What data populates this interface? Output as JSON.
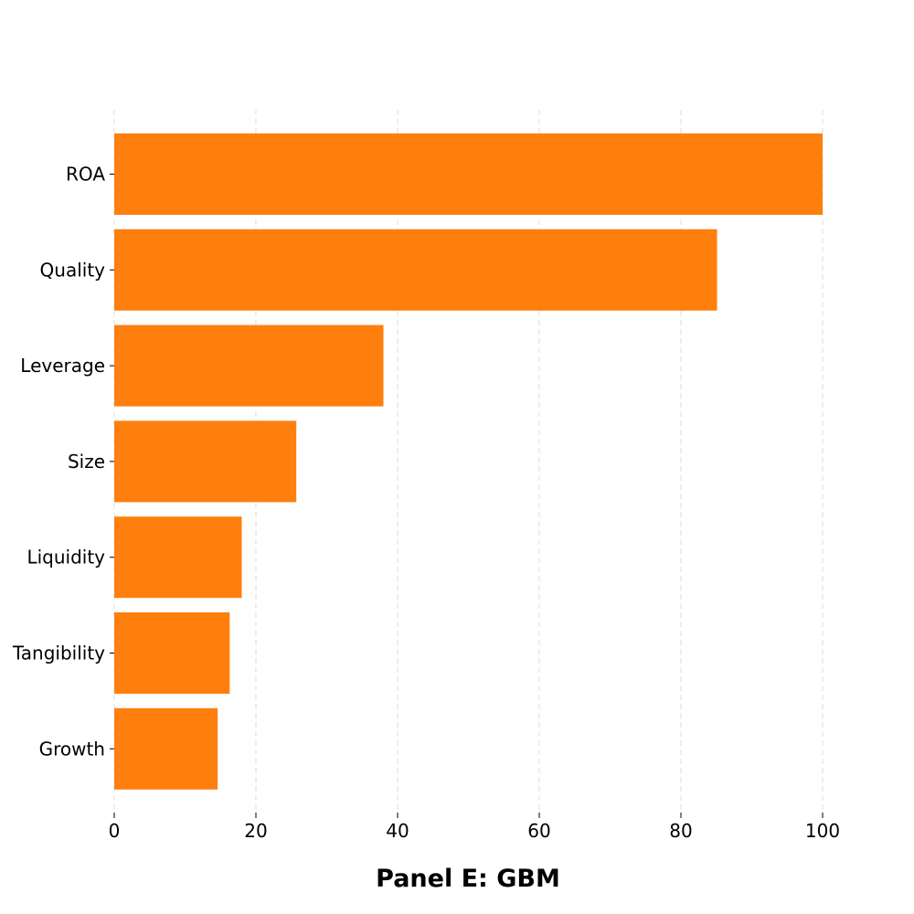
{
  "chart_data": {
    "type": "bar",
    "orientation": "horizontal",
    "categories": [
      "ROA",
      "Quality",
      "Leverage",
      "Size",
      "Liquidity",
      "Tangibility",
      "Growth"
    ],
    "values": [
      100,
      85.1,
      38,
      25.7,
      18,
      16.3,
      14.6
    ],
    "title": "",
    "xlabel": "Panel E: GBM",
    "ylabel": "",
    "xlim": [
      0,
      100
    ],
    "xticks": [
      0,
      20,
      40,
      60,
      80,
      100
    ],
    "grid": "x",
    "bar_color": "#ff7f0e",
    "legend": "none"
  }
}
